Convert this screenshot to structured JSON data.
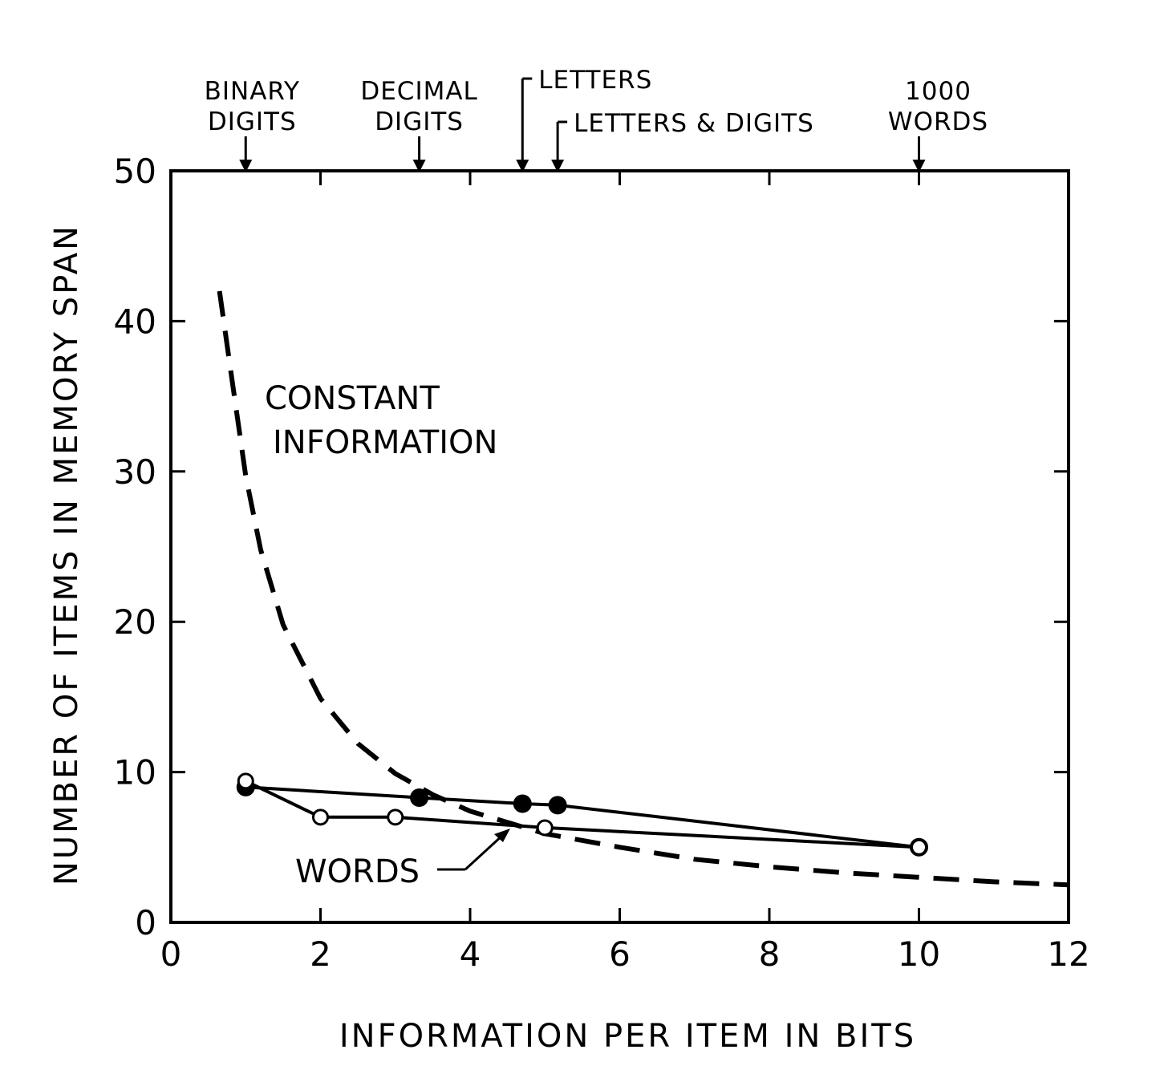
{
  "chart_data": {
    "type": "line",
    "xlabel": "INFORMATION PER ITEM IN BITS",
    "ylabel": "NUMBER OF ITEMS IN MEMORY SPAN",
    "xlim": [
      0,
      12
    ],
    "ylim": [
      0,
      50
    ],
    "x_ticks": [
      "0",
      "2",
      "4",
      "6",
      "8",
      "10",
      "12"
    ],
    "y_ticks": [
      "0",
      "10",
      "20",
      "30",
      "40",
      "50"
    ],
    "grid": false,
    "top_markers": [
      {
        "lines": [
          "BINARY",
          "DIGITS"
        ],
        "x": 1
      },
      {
        "lines": [
          "DECIMAL",
          "DIGITS"
        ],
        "x": 3.32
      },
      {
        "lines": [
          "LETTERS"
        ],
        "x": 4.7
      },
      {
        "lines": [
          "LETTERS & DIGITS"
        ],
        "x": 5.17
      },
      {
        "lines": [
          "1000",
          "WORDS"
        ],
        "x": 10
      }
    ],
    "series": [
      {
        "style": "solid",
        "marker": "filled-circle",
        "points": [
          [
            1,
            9.0
          ],
          [
            3.32,
            8.3
          ],
          [
            4.7,
            7.9
          ],
          [
            5.17,
            7.8
          ],
          [
            10,
            5.0
          ]
        ]
      },
      {
        "style": "solid",
        "marker": "open-circle",
        "points": [
          [
            1,
            9.4
          ],
          [
            2,
            7.0
          ],
          [
            3,
            7.0
          ],
          [
            5,
            6.3
          ],
          [
            10,
            5.0
          ]
        ]
      },
      {
        "style": "dashed",
        "marker": "none",
        "points": [
          [
            0.65,
            42.0
          ],
          [
            0.8,
            36.7
          ],
          [
            1,
            29.7
          ],
          [
            1.2,
            24.8
          ],
          [
            1.5,
            19.8
          ],
          [
            2,
            14.9
          ],
          [
            2.5,
            11.9
          ],
          [
            3,
            9.9
          ],
          [
            3.5,
            8.5
          ],
          [
            4,
            7.4
          ],
          [
            5,
            5.9
          ],
          [
            6,
            5.0
          ],
          [
            7,
            4.2
          ],
          [
            8,
            3.7
          ],
          [
            9,
            3.3
          ],
          [
            10,
            3.0
          ],
          [
            11,
            2.7
          ],
          [
            12,
            2.5
          ]
        ]
      }
    ],
    "annotations": [
      {
        "text_lines": [
          "CONSTANT",
          "INFORMATION"
        ],
        "target": "dashed series"
      },
      {
        "text": "WORDS",
        "target": "open-circle series"
      }
    ]
  }
}
